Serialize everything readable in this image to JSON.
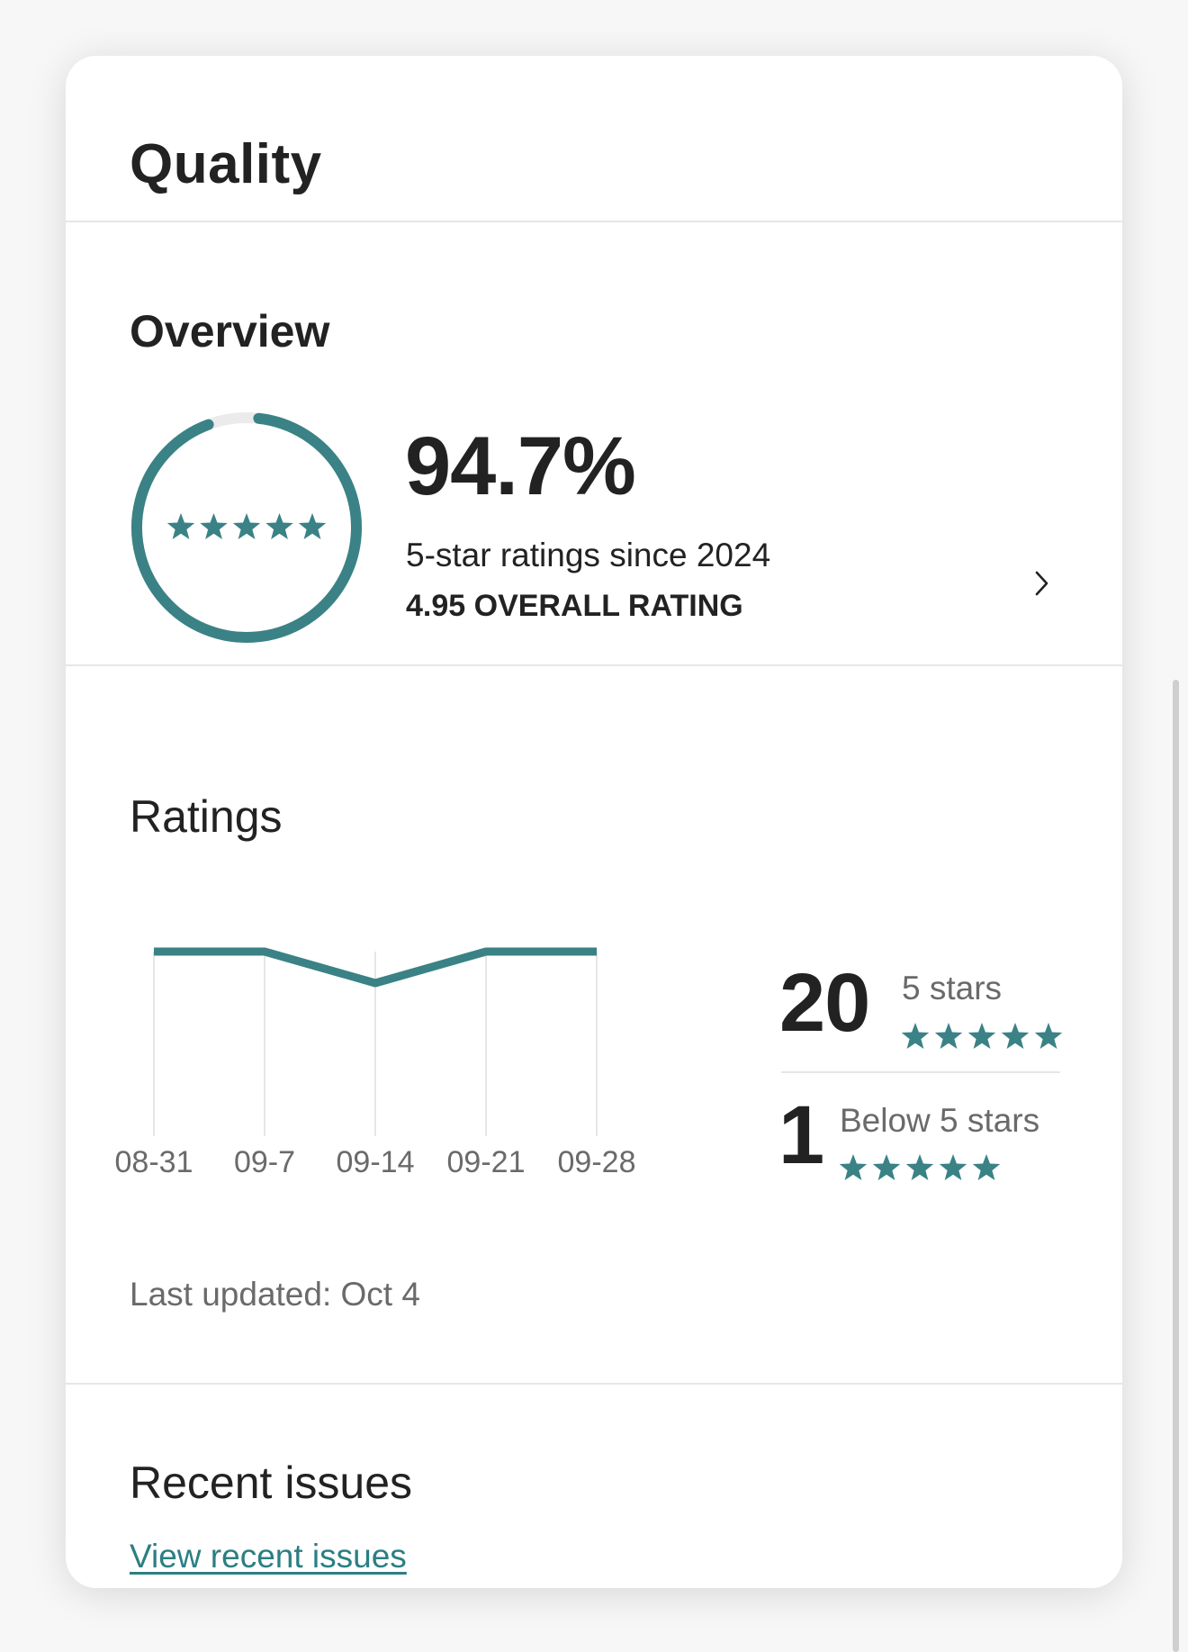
{
  "colors": {
    "accent": "#3a8285",
    "gridline": "#e6e6e6",
    "muted": "#6a6a6a"
  },
  "card": {
    "title": "Quality",
    "overview": {
      "heading": "Overview",
      "gauge_fraction": 0.947,
      "gauge_icon": "five-star-icon",
      "percent": "94.7%",
      "subtitle": "5-star ratings since 2024",
      "overall": "4.95 OVERALL RATING",
      "more_icon": "chevron-right-icon"
    },
    "ratings": {
      "heading": "Ratings",
      "five_count": "20",
      "five_label": "5 stars",
      "below_count": "1",
      "below_label": "Below 5 stars",
      "last_updated": "Last updated: Oct 4"
    },
    "recent_issues": {
      "heading": "Recent issues",
      "link": "View recent issues"
    }
  },
  "chart_data": {
    "type": "line",
    "categories": [
      "08-31",
      "09-7",
      "09-14",
      "09-21",
      "09-28"
    ],
    "values": [
      100,
      100,
      90,
      100,
      100
    ],
    "ylim": [
      0,
      100
    ],
    "grid": "vertical"
  }
}
